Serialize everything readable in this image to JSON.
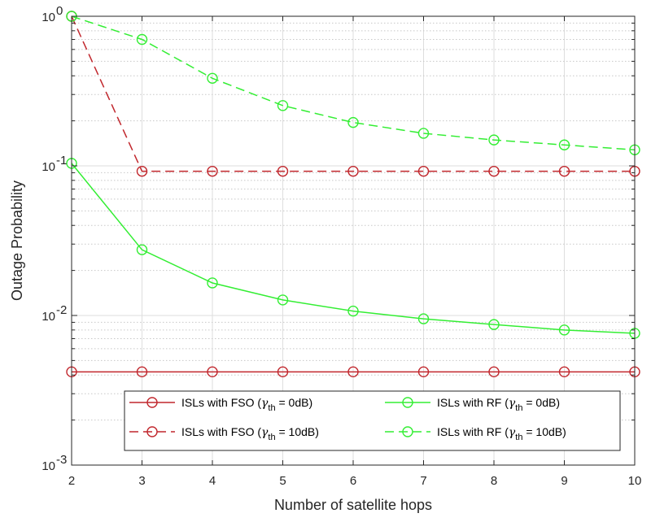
{
  "chart_data": {
    "type": "line",
    "xlabel": "Number of satellite hops",
    "ylabel": "Outage Probability",
    "x": [
      2,
      3,
      4,
      5,
      6,
      7,
      8,
      9,
      10
    ],
    "xlim": [
      2,
      10
    ],
    "ylim": [
      0.001,
      1
    ],
    "yscale": "log",
    "grid": true,
    "legend_position": "bottom",
    "x_tick_labels": [
      "2",
      "3",
      "4",
      "5",
      "6",
      "7",
      "8",
      "9",
      "10"
    ],
    "y_tick_labels": [
      {
        "base": "10",
        "exp": "-3"
      },
      {
        "base": "10",
        "exp": "-2"
      },
      {
        "base": "10",
        "exp": "-1"
      },
      {
        "base": "10",
        "exp": "0"
      }
    ],
    "series": [
      {
        "name": "ISLs with FSO (γth = 0dB)",
        "legend": {
          "prefix": "ISLs with FSO (",
          "symbol": "γ",
          "sub": "th",
          "suffix": " = 0dB)"
        },
        "color": "#c1272d",
        "dash": "solid",
        "marker": "circle",
        "values": [
          0.0042,
          0.0042,
          0.0042,
          0.0042,
          0.0042,
          0.0042,
          0.0042,
          0.0042,
          0.0042
        ]
      },
      {
        "name": "ISLs with RF (γth = 0dB)",
        "legend": {
          "prefix": "ISLs with RF (",
          "symbol": "γ",
          "sub": "th",
          "suffix": " = 0dB)"
        },
        "color": "#33ee33",
        "dash": "solid",
        "marker": "circle",
        "values": [
          0.104,
          0.0275,
          0.0165,
          0.0127,
          0.0107,
          0.0095,
          0.0087,
          0.008,
          0.0076
        ]
      },
      {
        "name": "ISLs with FSO (γth = 10dB)",
        "legend": {
          "prefix": "ISLs with FSO (",
          "symbol": "γ",
          "sub": "th",
          "suffix": " = 10dB)"
        },
        "color": "#c1272d",
        "dash": "dashed",
        "marker": "circle",
        "values": [
          1.0,
          0.092,
          0.092,
          0.092,
          0.092,
          0.092,
          0.092,
          0.092,
          0.092
        ]
      },
      {
        "name": "ISLs with RF (γth = 10dB)",
        "legend": {
          "prefix": "ISLs with RF (",
          "symbol": "γ",
          "sub": "th",
          "suffix": " = 10dB)"
        },
        "color": "#33ee33",
        "dash": "dashed",
        "marker": "circle",
        "values": [
          1.0,
          0.7,
          0.385,
          0.253,
          0.195,
          0.165,
          0.149,
          0.138,
          0.128
        ]
      }
    ]
  }
}
